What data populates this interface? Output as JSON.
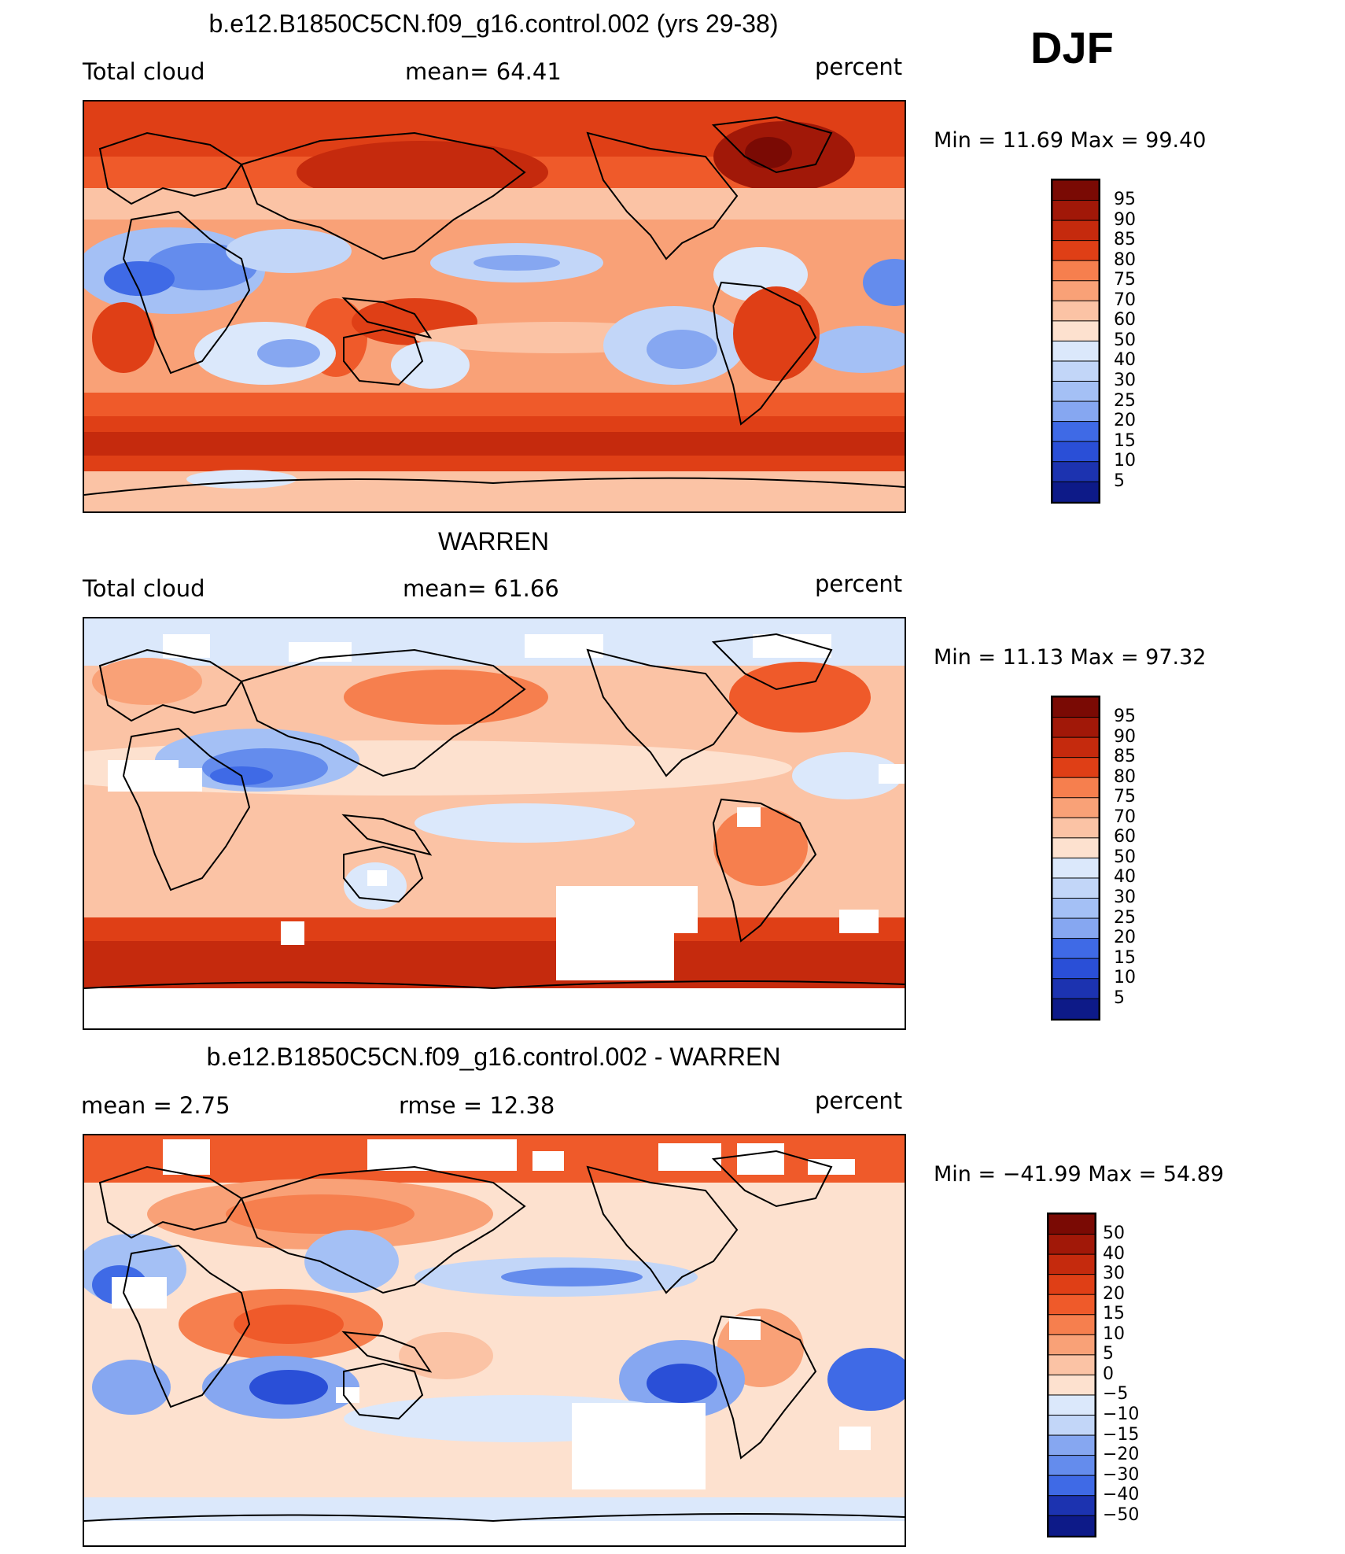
{
  "season": "DJF",
  "colors": {
    "pos": [
      "#fde1cf",
      "#fbc3a5",
      "#f9a177",
      "#f67f4e",
      "#ef5a2a",
      "#df3f16",
      "#c52a0d",
      "#a11808",
      "#7a0a04"
    ],
    "neg": [
      "#dbe8fb",
      "#c2d6f8",
      "#a4c0f5",
      "#86a7f1",
      "#648ced",
      "#3f6ae6",
      "#2a4fd7",
      "#1c33b0",
      "#0d1a88"
    ]
  },
  "panels": [
    {
      "title": "b.e12.B1850C5CN.f09_g16.control.002 (yrs 29-38)",
      "left_label": "Total cloud",
      "center_label": "mean=   64.41",
      "right_label": "percent",
      "minmax": "Min =    11.69  Max =    99.40",
      "colorbar_labels": [
        "95",
        "90",
        "85",
        "80",
        "75",
        "70",
        "60",
        "50",
        "40",
        "30",
        "25",
        "20",
        "15",
        "10",
        "5"
      ],
      "levels": 16,
      "split": 7
    },
    {
      "title": "WARREN",
      "left_label": "Total cloud",
      "center_label": "mean=   61.66",
      "right_label": "percent",
      "minmax": "Min =    11.13  Max =    97.32",
      "colorbar_labels": [
        "95",
        "90",
        "85",
        "80",
        "75",
        "70",
        "60",
        "50",
        "40",
        "30",
        "25",
        "20",
        "15",
        "10",
        "5"
      ],
      "levels": 16,
      "split": 7
    },
    {
      "title": "b.e12.B1850C5CN.f09_g16.control.002 - WARREN",
      "left_label": "mean =     2.75",
      "center_label": "rmse =    12.38",
      "right_label": "percent",
      "minmax": "Min = −41.99  Max =    54.89",
      "colorbar_labels": [
        "50",
        "40",
        "30",
        "20",
        "15",
        "10",
        "5",
        "0",
        "−5",
        "−10",
        "−15",
        "−20",
        "−30",
        "−40",
        "−50"
      ],
      "levels": 16,
      "split": 8
    }
  ],
  "chart_data": [
    {
      "type": "heatmap",
      "title": "b.e12.B1850C5CN.f09_g16.control.002 (yrs 29-38)",
      "variable": "Total cloud",
      "units": "percent",
      "season": "DJF",
      "mean": 64.41,
      "min": 11.69,
      "max": 99.4,
      "contour_levels": [
        5,
        10,
        15,
        20,
        25,
        30,
        40,
        50,
        60,
        70,
        75,
        80,
        85,
        90,
        95
      ]
    },
    {
      "type": "heatmap",
      "title": "WARREN",
      "variable": "Total cloud",
      "units": "percent",
      "season": "DJF",
      "mean": 61.66,
      "min": 11.13,
      "max": 97.32,
      "contour_levels": [
        5,
        10,
        15,
        20,
        25,
        30,
        40,
        50,
        60,
        70,
        75,
        80,
        85,
        90,
        95
      ]
    },
    {
      "type": "heatmap",
      "title": "b.e12.B1850C5CN.f09_g16.control.002 - WARREN",
      "units": "percent",
      "season": "DJF",
      "mean": 2.75,
      "rmse": 12.38,
      "min": -41.99,
      "max": 54.89,
      "contour_levels": [
        -50,
        -40,
        -30,
        -20,
        -15,
        -10,
        -5,
        0,
        5,
        10,
        15,
        20,
        30,
        40,
        50
      ]
    }
  ]
}
